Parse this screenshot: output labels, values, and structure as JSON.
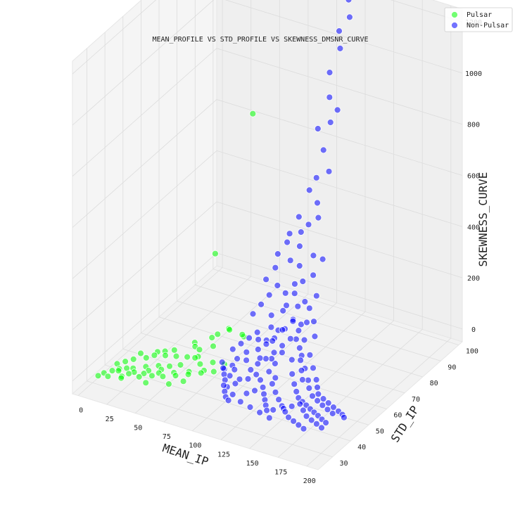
{
  "chart_data": {
    "type": "scatter",
    "projection": "3d",
    "title": "MEAN_PROFILE VS STD_PROFILE VS SKEWNESS_DMSNR_CURVE",
    "xlabel": "MEAN_IP",
    "ylabel": "STD_IP",
    "zlabel": "SKEWNESS_CURVE",
    "xlim": [
      -5,
      210
    ],
    "ylim": [
      22,
      102
    ],
    "zlim": [
      -50,
      1250
    ],
    "x_ticks": [
      "0",
      "25",
      "50",
      "75",
      "100",
      "125",
      "150",
      "175",
      "200"
    ],
    "y_ticks": [
      "30",
      "40",
      "50",
      "60",
      "70",
      "80",
      "90",
      "100"
    ],
    "z_ticks": [
      "0",
      "200",
      "400",
      "600",
      "800",
      "1000",
      "1200"
    ],
    "grid": true,
    "legend_position": "top-right",
    "series": [
      {
        "name": "Pulsar",
        "color": "#00ff00",
        "points": [
          [
            10,
            30,
            2
          ],
          [
            14,
            32,
            4
          ],
          [
            18,
            33,
            3
          ],
          [
            22,
            35,
            6
          ],
          [
            26,
            36,
            5
          ],
          [
            30,
            34,
            8
          ],
          [
            34,
            38,
            10
          ],
          [
            38,
            37,
            6
          ],
          [
            42,
            40,
            12
          ],
          [
            46,
            39,
            9
          ],
          [
            50,
            41,
            15
          ],
          [
            12,
            36,
            3
          ],
          [
            16,
            38,
            5
          ],
          [
            20,
            40,
            7
          ],
          [
            24,
            31,
            2
          ],
          [
            28,
            42,
            11
          ],
          [
            32,
            44,
            14
          ],
          [
            36,
            33,
            4
          ],
          [
            40,
            45,
            18
          ],
          [
            44,
            35,
            7
          ],
          [
            48,
            46,
            20
          ],
          [
            52,
            36,
            9
          ],
          [
            56,
            47,
            22
          ],
          [
            60,
            38,
            11
          ],
          [
            64,
            48,
            28
          ],
          [
            68,
            40,
            14
          ],
          [
            72,
            44,
            35
          ],
          [
            76,
            42,
            18
          ],
          [
            80,
            46,
            40
          ],
          [
            84,
            44,
            22
          ],
          [
            20,
            44,
            5
          ],
          [
            35,
            48,
            9
          ],
          [
            55,
            52,
            30
          ],
          [
            65,
            55,
            60
          ],
          [
            75,
            58,
            90
          ],
          [
            85,
            60,
            60
          ],
          [
            8,
            28,
            1
          ],
          [
            15,
            29,
            2
          ],
          [
            25,
            30,
            3
          ],
          [
            45,
            31,
            6
          ],
          [
            62,
            33,
            12
          ],
          [
            70,
            36,
            15
          ],
          [
            58,
            42,
            25
          ],
          [
            66,
            45,
            45
          ],
          [
            74,
            50,
            70
          ],
          [
            82,
            54,
            120
          ],
          [
            90,
            56,
            100
          ],
          [
            40,
            50,
            8
          ],
          [
            30,
            47,
            6
          ],
          [
            50,
            55,
            20
          ],
          [
            17,
            34,
            3
          ],
          [
            27,
            33,
            4
          ],
          [
            37,
            35,
            6
          ],
          [
            47,
            37,
            9
          ],
          [
            57,
            39,
            12
          ],
          [
            67,
            41,
            17
          ],
          [
            77,
            43,
            23
          ],
          [
            87,
            48,
            30
          ],
          [
            60,
            60,
            350
          ],
          [
            85,
            65,
            900
          ],
          [
            62,
            50,
            40
          ],
          [
            70,
            55,
            80
          ]
        ]
      },
      {
        "name": "Non-Pulsar",
        "color": "#0000ff",
        "points": [
          [
            110,
            48,
            40
          ],
          [
            115,
            50,
            80
          ],
          [
            120,
            47,
            20
          ],
          [
            125,
            52,
            60
          ],
          [
            130,
            49,
            30
          ],
          [
            105,
            45,
            15
          ],
          [
            100,
            52,
            70
          ],
          [
            95,
            50,
            50
          ],
          [
            118,
            55,
            120
          ],
          [
            122,
            58,
            150
          ],
          [
            128,
            60,
            180
          ],
          [
            112,
            62,
            110
          ],
          [
            108,
            58,
            90
          ],
          [
            135,
            55,
            70
          ],
          [
            140,
            52,
            40
          ],
          [
            145,
            50,
            20
          ],
          [
            150,
            48,
            10
          ],
          [
            155,
            46,
            5
          ],
          [
            160,
            45,
            3
          ],
          [
            165,
            44,
            2
          ],
          [
            170,
            43,
            1
          ],
          [
            175,
            42,
            1
          ],
          [
            180,
            41,
            1
          ],
          [
            185,
            40,
            0
          ],
          [
            190,
            39,
            0
          ],
          [
            98,
            44,
            25
          ],
          [
            102,
            40,
            12
          ],
          [
            106,
            42,
            18
          ],
          [
            114,
            44,
            35
          ],
          [
            118,
            46,
            45
          ],
          [
            126,
            48,
            55
          ],
          [
            132,
            46,
            28
          ],
          [
            138,
            44,
            16
          ],
          [
            144,
            42,
            8
          ],
          [
            150,
            40,
            4
          ],
          [
            156,
            38,
            2
          ],
          [
            162,
            36,
            1
          ],
          [
            168,
            35,
            1
          ],
          [
            174,
            34,
            0
          ],
          [
            180,
            33,
            0
          ],
          [
            110,
            38,
            6
          ],
          [
            120,
            36,
            4
          ],
          [
            130,
            35,
            3
          ],
          [
            140,
            34,
            2
          ],
          [
            150,
            33,
            1
          ],
          [
            116,
            64,
            200
          ],
          [
            120,
            66,
            240
          ],
          [
            124,
            68,
            280
          ],
          [
            118,
            70,
            320
          ],
          [
            112,
            66,
            230
          ],
          [
            106,
            62,
            160
          ],
          [
            126,
            64,
            210
          ],
          [
            132,
            62,
            160
          ],
          [
            138,
            60,
            120
          ],
          [
            100,
            58,
            110
          ],
          [
            96,
            56,
            95
          ],
          [
            92,
            54,
            80
          ],
          [
            88,
            52,
            65
          ],
          [
            94,
            48,
            35
          ],
          [
            90,
            46,
            28
          ],
          [
            104,
            56,
            100
          ],
          [
            122,
            52,
            75
          ],
          [
            128,
            54,
            95
          ],
          [
            134,
            58,
            130
          ],
          [
            142,
            56,
            90
          ],
          [
            148,
            54,
            60
          ],
          [
            154,
            52,
            35
          ],
          [
            158,
            50,
            22
          ],
          [
            164,
            48,
            12
          ],
          [
            170,
            47,
            8
          ],
          [
            176,
            46,
            5
          ],
          [
            182,
            45,
            3
          ],
          [
            188,
            44,
            2
          ],
          [
            115,
            72,
            380
          ],
          [
            118,
            75,
            450
          ],
          [
            121,
            78,
            520
          ],
          [
            113,
            74,
            420
          ],
          [
            125,
            76,
            480
          ],
          [
            110,
            70,
            330
          ],
          [
            127,
            72,
            360
          ],
          [
            130,
            70,
            300
          ],
          [
            117,
            80,
            600
          ],
          [
            120,
            82,
            700
          ],
          [
            114,
            78,
            560
          ],
          [
            123,
            84,
            800
          ],
          [
            119,
            86,
            880
          ],
          [
            116,
            88,
            960
          ],
          [
            122,
            90,
            1050
          ],
          [
            118,
            92,
            1100
          ],
          [
            124,
            94,
            1150
          ],
          [
            120,
            96,
            1200
          ],
          [
            112,
            84,
            760
          ],
          [
            126,
            86,
            840
          ],
          [
            128,
            80,
            640
          ],
          [
            108,
            76,
            460
          ],
          [
            104,
            72,
            380
          ],
          [
            100,
            68,
            300
          ],
          [
            132,
            74,
            340
          ],
          [
            136,
            68,
            240
          ],
          [
            140,
            64,
            170
          ],
          [
            144,
            62,
            130
          ],
          [
            146,
            58,
            85
          ],
          [
            152,
            56,
            55
          ],
          [
            158,
            54,
            30
          ],
          [
            162,
            52,
            18
          ],
          [
            166,
            50,
            10
          ],
          [
            172,
            49,
            6
          ],
          [
            178,
            48,
            4
          ],
          [
            184,
            47,
            2
          ],
          [
            190,
            46,
            1
          ],
          [
            195,
            45,
            1
          ],
          [
            198,
            44,
            0
          ],
          [
            99,
            40,
            14
          ],
          [
            103,
            38,
            8
          ],
          [
            107,
            36,
            5
          ],
          [
            111,
            35,
            3
          ],
          [
            97,
            42,
            20
          ],
          [
            93,
            44,
            24
          ],
          [
            89,
            46,
            30
          ],
          [
            85,
            48,
            35
          ],
          [
            113,
            50,
            55
          ],
          [
            117,
            52,
            68
          ],
          [
            121,
            54,
            85
          ],
          [
            125,
            56,
            105
          ],
          [
            129,
            58,
            125
          ],
          [
            133,
            60,
            150
          ],
          [
            137,
            62,
            175
          ],
          [
            107,
            54,
            78
          ],
          [
            103,
            50,
            55
          ],
          [
            99,
            46,
            38
          ],
          [
            119,
            40,
            10
          ],
          [
            123,
            42,
            14
          ],
          [
            127,
            44,
            20
          ],
          [
            131,
            42,
            12
          ],
          [
            135,
            40,
            7
          ],
          [
            139,
            38,
            4
          ],
          [
            143,
            36,
            2
          ],
          [
            147,
            37,
            3
          ],
          [
            153,
            39,
            4
          ],
          [
            157,
            41,
            6
          ],
          [
            161,
            43,
            8
          ],
          [
            167,
            41,
            4
          ],
          [
            173,
            39,
            2
          ],
          [
            179,
            38,
            1
          ],
          [
            185,
            37,
            1
          ],
          [
            191,
            36,
            0
          ],
          [
            111,
            56,
            92
          ],
          [
            115,
            58,
            108
          ],
          [
            109,
            60,
            130
          ],
          [
            113,
            64,
            175
          ],
          [
            117,
            68,
            260
          ],
          [
            121,
            60,
            140
          ],
          [
            125,
            62,
            170
          ],
          [
            129,
            66,
            220
          ],
          [
            133,
            66,
            200
          ],
          [
            137,
            58,
            100
          ],
          [
            141,
            56,
            70
          ],
          [
            145,
            54,
            48
          ],
          [
            149,
            52,
            30
          ],
          [
            105,
            66,
            250
          ],
          [
            101,
            64,
            220
          ],
          [
            97,
            62,
            190
          ],
          [
            93,
            60,
            160
          ],
          [
            95,
            66,
            260
          ],
          [
            99,
            70,
            340
          ],
          [
            103,
            74,
            400
          ]
        ]
      }
    ]
  },
  "legend": {
    "items": [
      {
        "label": "Pulsar",
        "color": "#00ff00"
      },
      {
        "label": "Non-Pulsar",
        "color": "#0000ff"
      }
    ]
  }
}
